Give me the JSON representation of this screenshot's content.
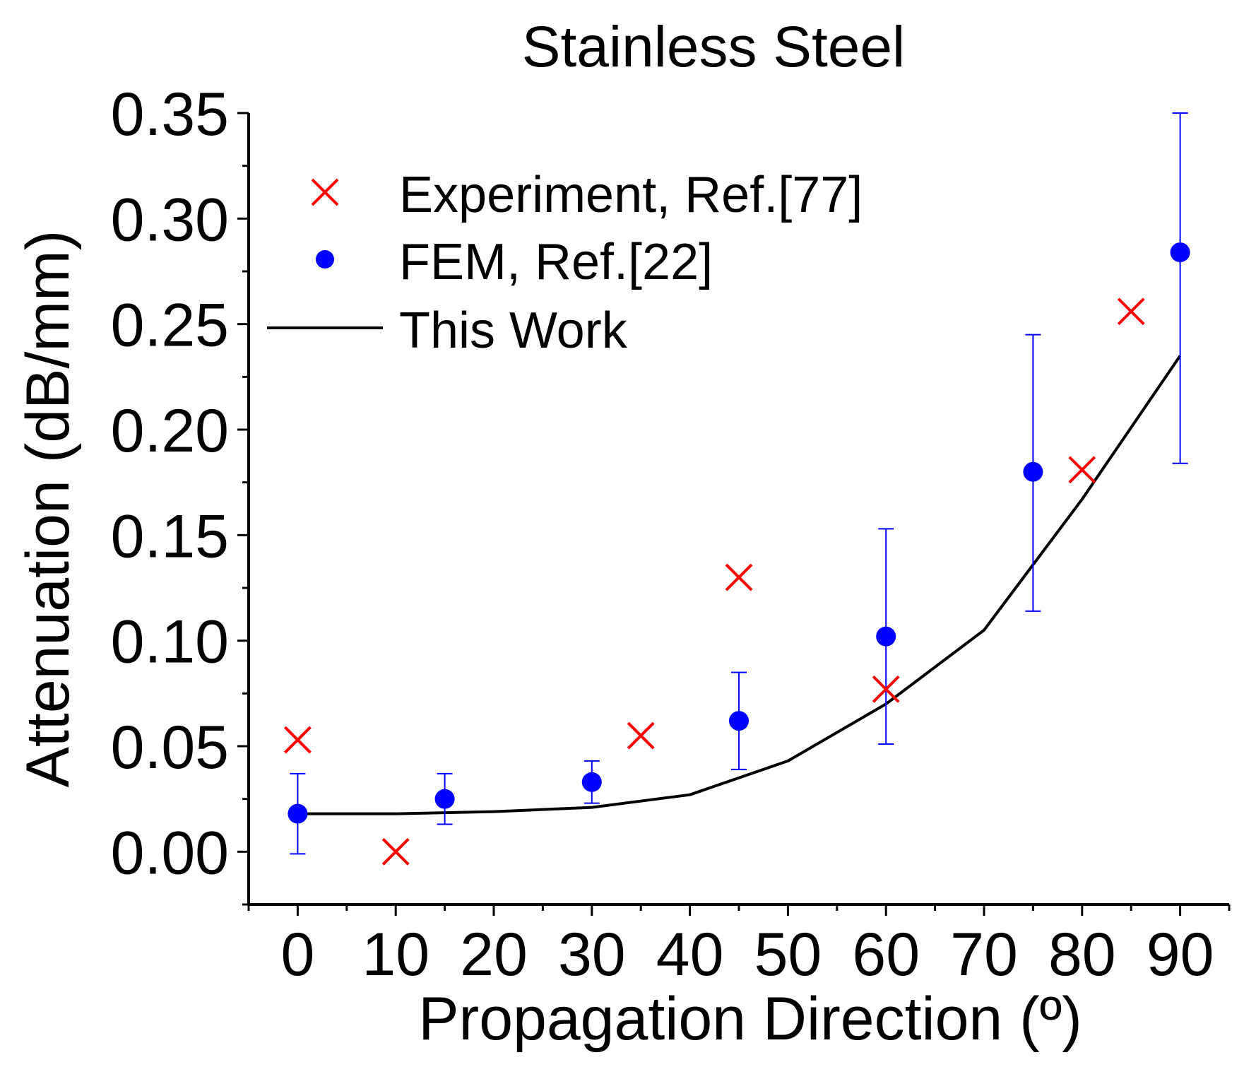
{
  "chart_data": {
    "type": "scatter",
    "title": "Stainless Steel",
    "xlabel": "Propagation Direction (º)",
    "ylabel": "Attenuation (dB/mm)",
    "xlim": [
      -5,
      95
    ],
    "ylim": [
      -0.025,
      0.35
    ],
    "x_ticks": [
      0,
      10,
      20,
      30,
      40,
      50,
      60,
      70,
      80,
      90
    ],
    "x_tick_labels": [
      "0",
      "10",
      "20",
      "30",
      "40",
      "50",
      "60",
      "70",
      "80",
      "90"
    ],
    "y_ticks": [
      0.0,
      0.05,
      0.1,
      0.15,
      0.2,
      0.25,
      0.3,
      0.35
    ],
    "y_tick_labels": [
      "0.00",
      "0.05",
      "0.10",
      "0.15",
      "0.20",
      "0.25",
      "0.30",
      "0.35"
    ],
    "grid": false,
    "legend_position": "top-left",
    "series": [
      {
        "name": "Experiment, Ref.[77]",
        "kind": "scatter",
        "marker": "x",
        "color": "#ff0000",
        "x": [
          0,
          10,
          35,
          45,
          60,
          80,
          85
        ],
        "y": [
          0.053,
          0.0,
          0.055,
          0.13,
          0.077,
          0.181,
          0.256
        ]
      },
      {
        "name": "FEM, Ref.[22]",
        "kind": "scatter",
        "marker": "circle",
        "color": "#0000ff",
        "x": [
          0,
          15,
          30,
          45,
          60,
          75,
          90
        ],
        "y": [
          0.018,
          0.025,
          0.033,
          0.062,
          0.102,
          0.18,
          0.284
        ],
        "y_err_low": [
          0.019,
          0.012,
          0.01,
          0.023,
          0.051,
          0.066,
          0.1
        ],
        "y_err_high": [
          0.019,
          0.012,
          0.01,
          0.023,
          0.051,
          0.065,
          0.066
        ]
      },
      {
        "name": "This Work",
        "kind": "line",
        "color": "#000000",
        "x": [
          0,
          10,
          20,
          30,
          40,
          50,
          60,
          70,
          80,
          90
        ],
        "y": [
          0.018,
          0.018,
          0.019,
          0.021,
          0.027,
          0.043,
          0.07,
          0.105,
          0.167,
          0.235
        ]
      }
    ]
  }
}
